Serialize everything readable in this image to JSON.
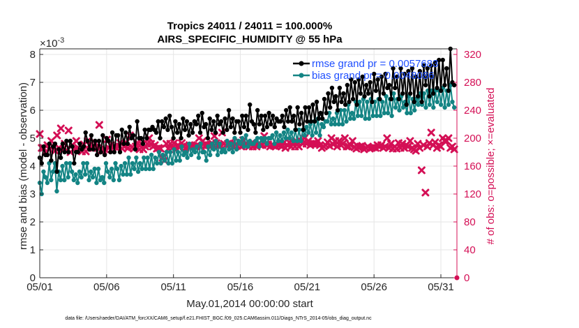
{
  "chart_data": {
    "type": "line",
    "title": "Tropics 24011 / 24011 = 100.000%",
    "subtitle": "AIRS_SPECIFIC_HUMIDITY @ 55 hPa",
    "xlabel": "May.01,2014 00:00:00 start",
    "ylabel": "rmse and bias (model - observation)",
    "y2label": "# of obs: o=possible; ×=evaluated",
    "y_exponent": "×10",
    "y_exponent_power": "-3",
    "footnote": "data file: /Users/raeder/DAI/ATM_forcXX/CAM6_setup/f.e21.FHIST_BGC.f09_025.CAM6assim.011/Diags_NTrS_2014-05/obs_diag_output.nc",
    "xlim": [
      1,
      32.2
    ],
    "ylim": [
      0,
      8.2
    ],
    "y2lim": [
      0,
      328
    ],
    "x_ticks": [
      1,
      6,
      11,
      16,
      21,
      26,
      31
    ],
    "x_tick_labels": [
      "05/01",
      "05/06",
      "05/11",
      "05/16",
      "05/21",
      "05/26",
      "05/31"
    ],
    "y_ticks": [
      0,
      1,
      2,
      3,
      4,
      5,
      6,
      7,
      8
    ],
    "y_tick_labels": [
      "0",
      "1",
      "2",
      "3",
      "4",
      "5",
      "6",
      "7",
      "8"
    ],
    "y2_ticks": [
      0,
      40,
      80,
      120,
      160,
      200,
      240,
      280,
      320
    ],
    "y2_tick_labels": [
      "0",
      "40",
      "80",
      "120",
      "160",
      "200",
      "240",
      "280",
      "320"
    ],
    "grid": true,
    "legend_position": "top-right",
    "colors": {
      "rmse": "#000000",
      "bias": "#138484",
      "obs": "#d40f55",
      "legend_text": "#1f4fff",
      "right_axis": "#d40f55"
    },
    "series": [
      {
        "name": "rmse",
        "legend_label": "rmse grand pr = 0.0057683",
        "values": [
          4.3,
          4.1,
          4.7,
          4.4,
          4.4,
          4.8,
          4.2,
          4.7,
          4.8,
          3.8,
          4.6,
          4.3,
          4.8,
          4.5,
          4.9,
          4.5,
          4.9,
          4.7,
          4.1,
          4.5,
          4.5,
          4.8,
          4.6,
          4.7,
          5.2,
          4.9,
          4.6,
          5.1,
          4.6,
          4.9,
          4.4,
          4.9,
          4.5,
          5.1,
          4.4,
          5.0,
          4.9,
          4.5,
          5.2,
          4.5,
          5.1,
          5.1,
          4.5,
          5.3,
          4.8,
          5.2,
          4.8,
          5.4,
          5.0,
          5.1,
          4.6,
          5.6,
          5.0,
          5.0,
          4.8,
          5.3,
          5.0,
          5.3,
          5.3,
          5.4,
          5.3,
          5.2,
          5.6,
          5.0,
          5.6,
          5.4,
          5.7,
          5.3,
          5.8,
          5.4,
          5.0,
          5.6,
          5.2,
          5.5,
          5.0,
          5.7,
          5.3,
          5.6,
          5.1,
          5.5,
          5.2,
          5.6,
          5.5,
          5.8,
          5.2,
          5.9,
          5.4,
          5.5,
          5.0,
          5.7,
          5.3,
          5.6,
          5.2,
          5.8,
          5.5,
          5.6,
          5.2,
          5.7,
          5.3,
          6.0,
          5.4,
          5.7,
          5.2,
          5.6,
          5.6,
          5.2,
          5.8,
          5.4,
          5.8,
          5.3,
          6.2,
          5.6,
          5.5,
          5.2,
          6.0,
          5.5,
          5.8,
          5.3,
          5.8,
          5.4,
          5.9,
          5.5,
          5.8,
          5.4,
          5.7,
          5.6,
          5.6,
          5.8,
          5.4,
          6.0,
          5.6,
          6.1,
          5.6,
          5.8,
          5.3,
          6.1,
          5.5,
          5.9,
          5.3,
          6.1,
          5.6,
          6.1,
          5.6,
          6.2,
          5.6,
          6.3,
          5.7,
          5.9,
          5.7,
          6.4,
          5.9,
          6.6,
          6.1,
          6.8,
          6.3,
          6.5,
          6.0,
          6.8,
          6.3,
          6.6,
          6.2,
          6.9,
          6.3,
          7.1,
          6.4,
          7.0,
          6.2,
          7.1,
          6.6,
          7.2,
          6.5,
          6.9,
          6.6,
          7.0,
          6.3,
          7.3,
          6.7,
          7.1,
          6.4,
          7.2,
          6.6,
          7.3,
          6.8,
          6.9,
          6.4,
          7.5,
          6.8,
          7.2,
          6.4,
          7.5,
          6.6,
          7.3,
          6.2,
          7.4,
          6.6,
          7.5,
          6.3,
          7.2,
          6.5,
          7.4,
          6.3,
          7.6,
          6.9,
          7.5,
          6.5,
          7.6,
          6.6,
          7.7,
          6.8,
          7.8,
          6.7,
          7.8,
          6.9,
          7.5,
          6.7,
          8.2,
          7.0,
          6.9
        ]
      },
      {
        "name": "bias",
        "legend_label": "bias grand pr = 0.0048086",
        "values": [
          3.4,
          3.0,
          3.8,
          3.6,
          3.4,
          4.1,
          3.5,
          3.8,
          4.1,
          3.1,
          3.8,
          3.5,
          4.0,
          3.5,
          4.1,
          3.6,
          4.1,
          3.8,
          3.5,
          3.7,
          3.4,
          3.8,
          3.6,
          4.1,
          3.7,
          4.1,
          3.5,
          3.8,
          3.6,
          3.9,
          3.4,
          3.9,
          3.5,
          3.6,
          3.4,
          4.1,
          3.8,
          3.6,
          3.9,
          3.5,
          4.1,
          3.9,
          3.5,
          4.0,
          3.7,
          4.1,
          3.7,
          4.3,
          3.7,
          4.1,
          3.9,
          4.3,
          3.8,
          4.1,
          3.9,
          4.3,
          3.9,
          4.3,
          3.9,
          4.4,
          3.9,
          4.3,
          4.1,
          4.5,
          4.1,
          4.4,
          4.2,
          4.5,
          4.1,
          4.5,
          4.1,
          4.6,
          4.2,
          4.5,
          4.2,
          4.7,
          4.4,
          4.5,
          4.3,
          4.8,
          4.4,
          4.6,
          4.5,
          4.7,
          4.3,
          4.8,
          4.5,
          4.5,
          4.2,
          4.7,
          4.4,
          4.8,
          4.6,
          4.9,
          4.4,
          4.8,
          4.5,
          4.6,
          4.5,
          4.9,
          4.6,
          4.8,
          4.5,
          5.0,
          4.6,
          4.9,
          4.8,
          5.0,
          4.7,
          5.1,
          4.7,
          4.9,
          4.8,
          4.8,
          4.9,
          5.0,
          4.7,
          5.0,
          4.9,
          5.0,
          4.8,
          5.0,
          5.0,
          5.1,
          4.8,
          5.2,
          4.9,
          5.1,
          4.9,
          5.2,
          5.0,
          5.3,
          5.0,
          5.2,
          4.9,
          5.3,
          4.9,
          5.3,
          4.9,
          5.3,
          5.1,
          5.4,
          5.2,
          5.5,
          5.1,
          5.6,
          5.2,
          5.7,
          5.1,
          5.5,
          5.4,
          5.6,
          5.6,
          5.9,
          5.5,
          5.7,
          5.5,
          5.9,
          5.5,
          6.0,
          5.5,
          6.0,
          5.6,
          6.2,
          5.7,
          5.9,
          5.7,
          6.3,
          5.8,
          6.3,
          5.8,
          6.4,
          5.7,
          6.3,
          5.7,
          6.4,
          5.8,
          6.3,
          5.8,
          6.4,
          5.8,
          6.3,
          5.9,
          6.5,
          5.9,
          6.4,
          5.8,
          6.6,
          6.1,
          6.4,
          6.0,
          6.5,
          6.1,
          6.3,
          5.9,
          6.5,
          5.9,
          6.4,
          6.0,
          6.4,
          6.2,
          6.6,
          6.2,
          6.6,
          6.1,
          6.7,
          6.2,
          6.7,
          6.1,
          6.7,
          6.3,
          6.7,
          6.2,
          6.8,
          6.1,
          6.7,
          6.2,
          6.9,
          6.3,
          6.1
        ]
      },
      {
        "name": "obs_evaluated",
        "legend_label": "",
        "axis": "right",
        "marker": "x",
        "values": [
          206,
          186,
          186,
          180,
          190,
          184,
          196,
          188,
          182,
          204,
          186,
          214,
          184,
          192,
          183,
          211,
          180,
          190,
          184,
          196,
          186,
          184,
          181,
          191,
          181,
          196,
          190,
          186,
          186,
          193,
          186,
          219,
          182,
          182,
          184,
          198,
          186,
          190,
          187,
          188,
          186,
          188,
          193,
          185,
          188,
          194,
          186,
          204,
          187,
          185,
          188,
          193,
          184,
          192,
          184,
          188,
          192,
          200,
          192,
          188,
          190,
          185,
          186,
          185,
          172,
          168,
          192,
          185,
          192,
          186,
          193,
          184,
          190,
          187,
          193,
          188,
          186,
          188,
          190,
          189,
          189,
          188,
          190,
          200,
          188,
          196,
          189,
          190,
          190,
          191,
          192,
          203,
          193,
          189,
          190,
          208,
          192,
          190,
          192,
          193,
          190,
          188,
          191,
          189,
          194,
          188,
          197,
          190,
          192,
          188,
          192,
          188,
          190,
          188,
          192,
          190,
          190,
          203,
          191,
          191,
          188,
          190,
          189,
          188,
          190,
          190,
          188,
          193,
          186,
          190,
          194,
          188,
          193,
          188,
          195,
          188,
          196,
          192,
          200,
          192,
          196,
          190,
          192,
          192,
          192,
          196,
          190,
          186,
          188,
          190,
          194,
          189,
          200,
          191,
          196,
          188,
          196,
          190,
          192,
          200,
          188,
          188,
          190,
          196,
          187,
          185,
          187,
          188,
          189,
          184,
          186,
          188,
          185,
          186,
          187,
          186,
          190,
          188,
          190,
          186,
          188,
          200,
          186,
          192,
          185,
          188,
          185,
          193,
          186,
          192,
          186,
          190,
          188,
          196,
          186,
          184,
          182,
          192,
          186,
          154,
          190,
          122,
          188,
          193,
          208,
          190,
          194,
          186,
          190,
          188,
          200,
          196,
          196,
          200,
          186,
          188,
          184
        ]
      }
    ]
  }
}
